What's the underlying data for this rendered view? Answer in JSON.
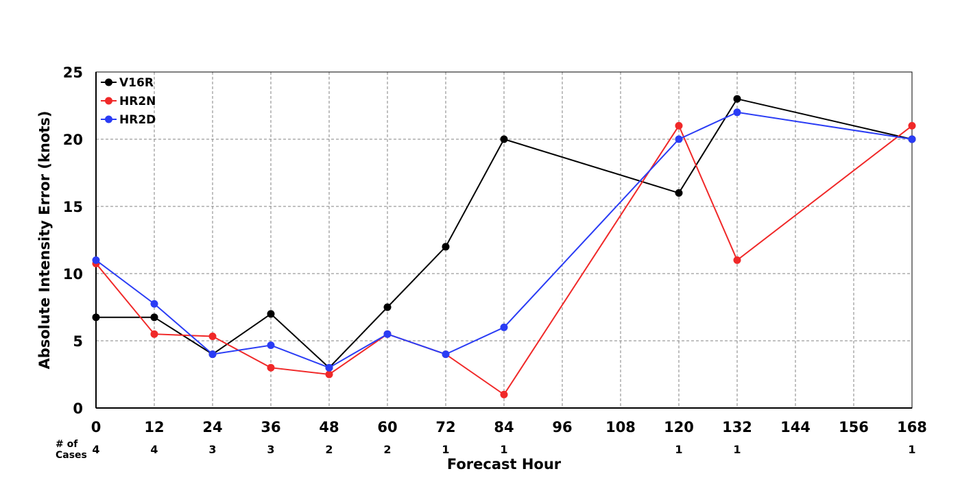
{
  "chart_data": {
    "type": "line",
    "title": "",
    "xlabel": "Forecast Hour",
    "ylabel": "Absolute Intensity Error (knots)",
    "xlim": [
      0,
      168
    ],
    "ylim": [
      0,
      25
    ],
    "x_ticks": [
      0,
      12,
      24,
      36,
      48,
      60,
      72,
      84,
      96,
      108,
      120,
      132,
      144,
      156,
      168
    ],
    "y_ticks": [
      0,
      5,
      10,
      15,
      20,
      25
    ],
    "grid": true,
    "legend_position": "top-left",
    "series": [
      {
        "name": "V16R",
        "color": "#000000",
        "x": [
          0,
          12,
          24,
          36,
          48,
          60,
          72,
          84,
          120,
          132,
          168
        ],
        "y": [
          6.75,
          6.75,
          4.0,
          7.0,
          3.0,
          7.5,
          12.0,
          20.0,
          16.0,
          23.0,
          20.0
        ]
      },
      {
        "name": "HR2N",
        "color": "#f02828",
        "x": [
          0,
          12,
          24,
          36,
          48,
          60,
          72,
          84,
          120,
          132,
          168
        ],
        "y": [
          10.75,
          5.5,
          5.33,
          3.0,
          2.5,
          5.5,
          4.0,
          1.0,
          21.0,
          11.0,
          21.0
        ]
      },
      {
        "name": "HR2D",
        "color": "#2a3cf5",
        "x": [
          0,
          12,
          24,
          36,
          48,
          60,
          72,
          84,
          120,
          132,
          168
        ],
        "y": [
          11.0,
          7.75,
          4.0,
          4.67,
          3.0,
          5.5,
          4.0,
          6.0,
          20.0,
          22.0,
          20.0
        ]
      }
    ],
    "cases": {
      "label_line1": "# of",
      "label_line2": "Cases",
      "x": [
        0,
        12,
        24,
        36,
        48,
        60,
        72,
        84,
        120,
        132,
        168
      ],
      "values": [
        "4",
        "4",
        "3",
        "3",
        "2",
        "2",
        "1",
        "1",
        "1",
        "1",
        "1"
      ]
    }
  }
}
